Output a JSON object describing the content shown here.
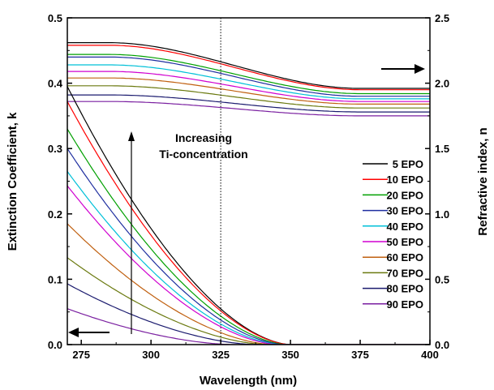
{
  "chart_data": {
    "type": "line",
    "title": "",
    "xlabel": "Wavelength (nm)",
    "ylabel_left": "Extinction Coefficient, k",
    "ylabel_right": "Refractive index, n",
    "xlim": [
      270,
      400
    ],
    "ylim_left": [
      0.0,
      0.5
    ],
    "ylim_right": [
      0.0,
      2.5
    ],
    "x_ticks": [
      275,
      300,
      325,
      350,
      375,
      400
    ],
    "y_ticks_left": [
      "0.0",
      "0.1",
      "0.2",
      "0.3",
      "0.4",
      "0.5"
    ],
    "y_ticks_right": [
      "0.0",
      "0.5",
      "1.0",
      "1.5",
      "2.0",
      "2.5"
    ],
    "grid": false,
    "legend_position": "right-center",
    "reference_line_x": 325,
    "annotation": [
      "Increasing",
      "Ti-concentration"
    ],
    "series": [
      {
        "name": "5 EPO",
        "color": "#000000",
        "k_at_270": 0.395,
        "k_zero_at": 350,
        "n_at_270": 2.31,
        "n_at_400": 1.96
      },
      {
        "name": "10 EPO",
        "color": "#ff0000",
        "k_at_270": 0.372,
        "k_zero_at": 350,
        "n_at_270": 2.29,
        "n_at_400": 1.95
      },
      {
        "name": "20 EPO",
        "color": "#00a000",
        "k_at_270": 0.33,
        "k_zero_at": 349,
        "n_at_270": 2.22,
        "n_at_400": 1.92
      },
      {
        "name": "30 EPO",
        "color": "#1f2fa0",
        "k_at_270": 0.3,
        "k_zero_at": 348,
        "n_at_270": 2.2,
        "n_at_400": 1.9
      },
      {
        "name": "40 EPO",
        "color": "#00c0d8",
        "k_at_270": 0.265,
        "k_zero_at": 347,
        "n_at_270": 2.14,
        "n_at_400": 1.88
      },
      {
        "name": "50 EPO",
        "color": "#d000d0",
        "k_at_270": 0.243,
        "k_zero_at": 346,
        "n_at_270": 2.09,
        "n_at_400": 1.86
      },
      {
        "name": "60 EPO",
        "color": "#c06010",
        "k_at_270": 0.185,
        "k_zero_at": 344,
        "n_at_270": 2.04,
        "n_at_400": 1.84
      },
      {
        "name": "70 EPO",
        "color": "#6b7a10",
        "k_at_270": 0.133,
        "k_zero_at": 342,
        "n_at_270": 1.98,
        "n_at_400": 1.81
      },
      {
        "name": "80 EPO",
        "color": "#1a1a6e",
        "k_at_270": 0.093,
        "k_zero_at": 338,
        "n_at_270": 1.91,
        "n_at_400": 1.78
      },
      {
        "name": "90 EPO",
        "color": "#7a1fa0",
        "k_at_270": 0.055,
        "k_zero_at": 330,
        "n_at_270": 1.86,
        "n_at_400": 1.75
      }
    ]
  }
}
